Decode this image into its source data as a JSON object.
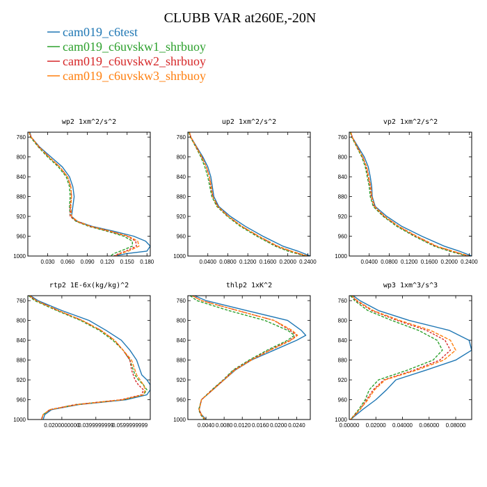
{
  "figure": {
    "title": "CLUBB VAR at260E,-20N"
  },
  "legend": [
    {
      "name": "cam019_c6test",
      "color": "#1f77b4"
    },
    {
      "name": "cam019_c6uvskw1_shrbuoy",
      "color": "#2ca02c"
    },
    {
      "name": "cam019_c6uvskw2_shrbuoy",
      "color": "#d62728"
    },
    {
      "name": "cam019_c6uvskw3_shrbuoy",
      "color": "#ff7f0e"
    }
  ],
  "chart_data": [
    {
      "type": "line",
      "title": "wp2  1xm^2/s^2",
      "xlim": [
        0,
        0.185
      ],
      "ylim": [
        1000,
        750
      ],
      "xticks": [
        0.03,
        0.06,
        0.09,
        0.12,
        0.15,
        0.18
      ],
      "xticklabels": [
        "0.030",
        "0.060",
        "0.090",
        "0.120",
        "0.150",
        "0.180"
      ],
      "yticks": [
        760,
        800,
        840,
        880,
        920,
        960,
        1000
      ],
      "y": [
        750,
        760,
        780,
        800,
        820,
        840,
        860,
        880,
        900,
        920,
        930,
        940,
        950,
        960,
        970,
        980,
        990,
        995,
        1000
      ],
      "series": [
        {
          "name": "cam019_c6test",
          "color": "#1f77b4",
          "dash": "",
          "x": [
            0.003,
            0.005,
            0.018,
            0.035,
            0.052,
            0.063,
            0.068,
            0.07,
            0.068,
            0.066,
            0.075,
            0.097,
            0.13,
            0.16,
            0.178,
            0.185,
            0.18,
            0.15,
            0.13
          ]
        },
        {
          "name": "cam019_c6uvskw1_shrbuoy",
          "color": "#2ca02c",
          "dash": "4,2",
          "x": [
            0.002,
            0.004,
            0.016,
            0.03,
            0.046,
            0.058,
            0.063,
            0.064,
            0.063,
            0.064,
            0.073,
            0.092,
            0.12,
            0.145,
            0.158,
            0.158,
            0.14,
            0.13,
            0.125
          ]
        },
        {
          "name": "cam019_c6uvskw2_shrbuoy",
          "color": "#d62728",
          "dash": "3,2",
          "x": [
            0.002,
            0.005,
            0.017,
            0.032,
            0.048,
            0.06,
            0.065,
            0.066,
            0.064,
            0.064,
            0.074,
            0.094,
            0.123,
            0.15,
            0.163,
            0.164,
            0.148,
            0.138,
            0.13
          ]
        },
        {
          "name": "cam019_c6uvskw3_shrbuoy",
          "color": "#ff7f0e",
          "dash": "5,2",
          "x": [
            0.002,
            0.005,
            0.017,
            0.032,
            0.048,
            0.06,
            0.065,
            0.066,
            0.065,
            0.066,
            0.075,
            0.095,
            0.125,
            0.152,
            0.166,
            0.168,
            0.152,
            0.14,
            0.132
          ]
        }
      ]
    },
    {
      "type": "line",
      "title": "up2  1xm^2/s^2",
      "xlim": [
        0,
        0.245
      ],
      "ylim": [
        1000,
        750
      ],
      "xticks": [
        0.04,
        0.08,
        0.12,
        0.16,
        0.2,
        0.24
      ],
      "xticklabels": [
        "0.0400",
        "0.0800",
        "0.1200",
        "0.1600",
        "0.2000",
        "0.2400"
      ],
      "yticks": [
        760,
        800,
        840,
        880,
        920,
        960,
        1000
      ],
      "y": [
        750,
        760,
        780,
        800,
        820,
        840,
        860,
        880,
        900,
        920,
        940,
        960,
        980,
        990,
        1000
      ],
      "series": [
        {
          "name": "cam019_c6test",
          "color": "#1f77b4",
          "dash": "",
          "x": [
            0.003,
            0.006,
            0.018,
            0.03,
            0.04,
            0.046,
            0.049,
            0.052,
            0.062,
            0.085,
            0.115,
            0.15,
            0.19,
            0.22,
            0.245
          ]
        },
        {
          "name": "cam019_c6uvskw1_shrbuoy",
          "color": "#2ca02c",
          "dash": "4,2",
          "x": [
            0.002,
            0.005,
            0.016,
            0.026,
            0.034,
            0.04,
            0.044,
            0.048,
            0.058,
            0.079,
            0.105,
            0.138,
            0.175,
            0.2,
            0.235
          ]
        },
        {
          "name": "cam019_c6uvskw2_shrbuoy",
          "color": "#d62728",
          "dash": "3,2",
          "x": [
            0.003,
            0.006,
            0.017,
            0.028,
            0.037,
            0.043,
            0.046,
            0.05,
            0.06,
            0.081,
            0.108,
            0.141,
            0.178,
            0.205,
            0.238
          ]
        },
        {
          "name": "cam019_c6uvskw3_shrbuoy",
          "color": "#ff7f0e",
          "dash": "5,2",
          "x": [
            0.003,
            0.006,
            0.017,
            0.028,
            0.037,
            0.043,
            0.047,
            0.05,
            0.06,
            0.081,
            0.108,
            0.142,
            0.18,
            0.207,
            0.24
          ]
        }
      ]
    },
    {
      "type": "line",
      "title": "vp2  1xm^2/s^2",
      "xlim": [
        0,
        0.245
      ],
      "ylim": [
        1000,
        750
      ],
      "xticks": [
        0.04,
        0.08,
        0.12,
        0.16,
        0.2,
        0.24
      ],
      "xticklabels": [
        "0.0400",
        "0.0800",
        "0.1200",
        "0.1600",
        "0.2000",
        "0.2400"
      ],
      "yticks": [
        760,
        800,
        840,
        880,
        920,
        960,
        1000
      ],
      "y": [
        750,
        760,
        780,
        800,
        820,
        840,
        860,
        880,
        900,
        920,
        940,
        960,
        980,
        990,
        1000
      ],
      "series": [
        {
          "name": "cam019_c6test",
          "color": "#1f77b4",
          "dash": "",
          "x": [
            0.003,
            0.006,
            0.018,
            0.03,
            0.038,
            0.042,
            0.045,
            0.046,
            0.052,
            0.075,
            0.105,
            0.145,
            0.19,
            0.22,
            0.245
          ]
        },
        {
          "name": "cam019_c6uvskw1_shrbuoy",
          "color": "#2ca02c",
          "dash": "4,2",
          "x": [
            0.002,
            0.005,
            0.015,
            0.025,
            0.032,
            0.036,
            0.04,
            0.042,
            0.048,
            0.068,
            0.095,
            0.13,
            0.17,
            0.2,
            0.235
          ]
        },
        {
          "name": "cam019_c6uvskw2_shrbuoy",
          "color": "#d62728",
          "dash": "3,2",
          "x": [
            0.003,
            0.006,
            0.016,
            0.027,
            0.034,
            0.038,
            0.042,
            0.044,
            0.05,
            0.07,
            0.098,
            0.133,
            0.173,
            0.205,
            0.238
          ]
        },
        {
          "name": "cam019_c6uvskw3_shrbuoy",
          "color": "#ff7f0e",
          "dash": "5,2",
          "x": [
            0.003,
            0.006,
            0.016,
            0.027,
            0.035,
            0.039,
            0.043,
            0.045,
            0.051,
            0.071,
            0.099,
            0.135,
            0.175,
            0.207,
            0.24
          ]
        }
      ]
    },
    {
      "type": "line",
      "title": "rtp2  1E-6x(kg/kg)^2",
      "xlim": [
        0,
        0.072
      ],
      "ylim": [
        1000,
        750
      ],
      "xticks": [
        0.02,
        0.04,
        0.06
      ],
      "xticklabels": [
        "0.0200000000",
        "0.0399999999",
        "0.0599999999"
      ],
      "yticks": [
        760,
        800,
        840,
        880,
        920,
        960,
        1000
      ],
      "y": [
        750,
        760,
        780,
        800,
        820,
        840,
        860,
        880,
        900,
        910,
        920,
        930,
        940,
        950,
        960,
        970,
        980,
        990,
        1000
      ],
      "series": [
        {
          "name": "cam019_c6test",
          "color": "#1f77b4",
          "dash": "",
          "x": [
            0.0015,
            0.006,
            0.02,
            0.036,
            0.046,
            0.055,
            0.06,
            0.064,
            0.066,
            0.067,
            0.07,
            0.072,
            0.072,
            0.07,
            0.058,
            0.03,
            0.014,
            0.01,
            0.009
          ]
        },
        {
          "name": "cam019_c6uvskw1_shrbuoy",
          "color": "#2ca02c",
          "dash": "4,2",
          "x": [
            0.0005,
            0.004,
            0.017,
            0.031,
            0.042,
            0.05,
            0.056,
            0.06,
            0.062,
            0.063,
            0.065,
            0.068,
            0.07,
            0.068,
            0.056,
            0.028,
            0.013,
            0.009,
            0.008
          ]
        },
        {
          "name": "cam019_c6uvskw2_shrbuoy",
          "color": "#d62728",
          "dash": "3,2",
          "x": [
            0.001,
            0.005,
            0.018,
            0.032,
            0.043,
            0.051,
            0.056,
            0.06,
            0.061,
            0.062,
            0.063,
            0.065,
            0.068,
            0.067,
            0.055,
            0.028,
            0.013,
            0.009,
            0.008
          ]
        },
        {
          "name": "cam019_c6uvskw3_shrbuoy",
          "color": "#ff7f0e",
          "dash": "5,2",
          "x": [
            0.001,
            0.005,
            0.018,
            0.032,
            0.043,
            0.051,
            0.056,
            0.061,
            0.063,
            0.064,
            0.066,
            0.068,
            0.069,
            0.068,
            0.056,
            0.029,
            0.013,
            0.009,
            0.008
          ]
        }
      ]
    },
    {
      "type": "line",
      "title": "thlp2  1xK^2",
      "xlim": [
        0,
        0.027
      ],
      "ylim": [
        1000,
        750
      ],
      "xticks": [
        0.004,
        0.008,
        0.012,
        0.016,
        0.02,
        0.024
      ],
      "xticklabels": [
        "0.0040",
        "0.0080",
        "0.0120",
        "0.0160",
        "0.0200",
        "0.0240"
      ],
      "yticks": [
        760,
        800,
        840,
        880,
        920,
        960,
        1000
      ],
      "y": [
        750,
        760,
        780,
        800,
        820,
        830,
        840,
        860,
        880,
        900,
        920,
        940,
        960,
        980,
        990,
        1000
      ],
      "series": [
        {
          "name": "cam019_c6test",
          "color": "#1f77b4",
          "dash": "",
          "x": [
            0.0015,
            0.004,
            0.013,
            0.022,
            0.025,
            0.026,
            0.024,
            0.019,
            0.014,
            0.0105,
            0.008,
            0.0055,
            0.003,
            0.0025,
            0.003,
            0.004
          ]
        },
        {
          "name": "cam019_c6uvskw1_shrbuoy",
          "color": "#2ca02c",
          "dash": "4,2",
          "x": [
            0.0005,
            0.002,
            0.009,
            0.017,
            0.022,
            0.0235,
            0.022,
            0.0175,
            0.0135,
            0.01,
            0.0078,
            0.0053,
            0.003,
            0.0024,
            0.0028,
            0.0036
          ]
        },
        {
          "name": "cam019_c6uvskw2_shrbuoy",
          "color": "#d62728",
          "dash": "3,2",
          "x": [
            0.001,
            0.003,
            0.011,
            0.019,
            0.0225,
            0.024,
            0.0225,
            0.018,
            0.0138,
            0.0102,
            0.0079,
            0.0054,
            0.003,
            0.0025,
            0.0029,
            0.0038
          ]
        },
        {
          "name": "cam019_c6uvskw3_shrbuoy",
          "color": "#ff7f0e",
          "dash": "5,2",
          "x": [
            0.001,
            0.003,
            0.011,
            0.019,
            0.023,
            0.0242,
            0.0228,
            0.0182,
            0.014,
            0.0104,
            0.008,
            0.0055,
            0.003,
            0.0025,
            0.003,
            0.0038
          ]
        }
      ]
    },
    {
      "type": "line",
      "title": "wp3  1xm^3/s^3",
      "xlim": [
        0,
        0.092
      ],
      "ylim": [
        1000,
        750
      ],
      "xticks": [
        0,
        0.02,
        0.04,
        0.06,
        0.08
      ],
      "xticklabels": [
        "0.00000",
        "0.02000",
        "0.04000",
        "0.06000",
        "0.08000"
      ],
      "yticks": [
        760,
        800,
        840,
        880,
        920,
        960,
        1000
      ],
      "y": [
        750,
        760,
        780,
        800,
        820,
        840,
        860,
        880,
        900,
        920,
        940,
        960,
        980,
        1000
      ],
      "series": [
        {
          "name": "cam019_c6test",
          "color": "#1f77b4",
          "dash": "",
          "x": [
            0.003,
            0.008,
            0.022,
            0.045,
            0.075,
            0.09,
            0.092,
            0.08,
            0.058,
            0.035,
            0.028,
            0.02,
            0.01,
            0.001
          ]
        },
        {
          "name": "cam019_c6uvskw1_shrbuoy",
          "color": "#2ca02c",
          "dash": "4,2",
          "x": [
            0.001,
            0.004,
            0.014,
            0.032,
            0.052,
            0.066,
            0.07,
            0.063,
            0.044,
            0.022,
            0.015,
            0.012,
            0.007,
            0.001
          ]
        },
        {
          "name": "cam019_c6uvskw2_shrbuoy",
          "color": "#d62728",
          "dash": "3,2",
          "x": [
            0.002,
            0.005,
            0.017,
            0.036,
            0.058,
            0.072,
            0.076,
            0.068,
            0.049,
            0.026,
            0.018,
            0.013,
            0.008,
            0.001
          ]
        },
        {
          "name": "cam019_c6uvskw3_shrbuoy",
          "color": "#ff7f0e",
          "dash": "5,2",
          "x": [
            0.002,
            0.006,
            0.018,
            0.038,
            0.061,
            0.076,
            0.08,
            0.071,
            0.051,
            0.027,
            0.019,
            0.014,
            0.008,
            0.001
          ]
        }
      ]
    }
  ]
}
